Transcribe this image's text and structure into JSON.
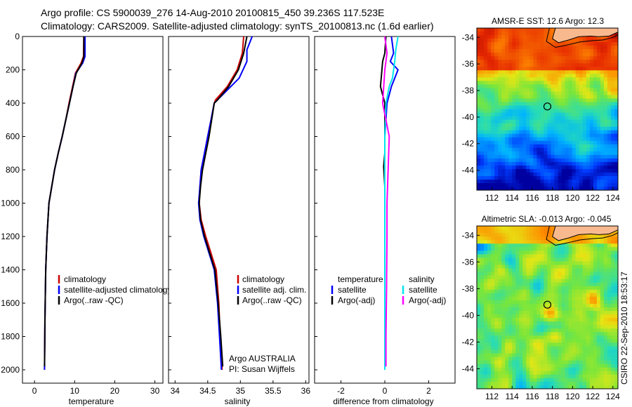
{
  "header": {
    "line1": "Argo profile: CS 5900039_276 14-Aug-2010 20100815_450 39.236S 117.523E",
    "line2": "Climatology: CARS2009. Satellite-adjusted climatology: synTS_20100813.nc (1.6d earlier)"
  },
  "colors": {
    "climatology": "#cc0000",
    "satellite": "#0000ff",
    "argo": "#000000",
    "sat_sal": "#00e5ee",
    "argo_sal": "#ff00ff",
    "land": "#f9b98f"
  },
  "chart_data": [
    {
      "type": "line",
      "xlabel": "temperature",
      "xticks": [
        0,
        10,
        20,
        30
      ],
      "xlim": [
        -3,
        32
      ],
      "ylim": [
        0,
        2080
      ],
      "yticks": [
        0,
        200,
        400,
        600,
        800,
        1000,
        1200,
        1400,
        1600,
        1800,
        2000
      ],
      "y_reversed": true,
      "series": [
        {
          "name": "climatology",
          "color": "#cc0000",
          "x": [
            12.3,
            12.2,
            11.6,
            10.2,
            9.5,
            8.6,
            7.8,
            6.9,
            5.9,
            5.0,
            4.3,
            3.6,
            3.1,
            2.8,
            2.6,
            2.5
          ],
          "y": [
            0,
            120,
            160,
            220,
            300,
            400,
            500,
            600,
            700,
            800,
            900,
            1000,
            1200,
            1400,
            1700,
            2000
          ]
        },
        {
          "name": "satellite-adjusted climatology",
          "color": "#0000ff",
          "x": [
            12.6,
            12.6,
            12.0,
            10.3,
            9.6,
            8.7,
            7.8,
            6.9,
            5.9,
            5.0,
            4.3,
            3.6,
            3.1,
            2.8,
            2.6,
            2.5
          ],
          "y": [
            0,
            120,
            160,
            220,
            300,
            400,
            500,
            600,
            700,
            800,
            900,
            1000,
            1200,
            1400,
            1700,
            2000
          ]
        },
        {
          "name": "Argo(..raw -QC)",
          "color": "#000000",
          "x": [
            12.3,
            12.3,
            11.8,
            10.4,
            9.6,
            8.7,
            7.8,
            6.9,
            5.9,
            5.0,
            4.3,
            3.6,
            3.1,
            2.8,
            2.6,
            2.5
          ],
          "y": [
            0,
            120,
            160,
            220,
            300,
            400,
            500,
            600,
            700,
            800,
            900,
            1000,
            1200,
            1400,
            1700,
            1980
          ]
        }
      ],
      "legend": [
        "climatology",
        "satellite-adjusted climatology",
        "Argo(..raw -QC)"
      ]
    },
    {
      "type": "line",
      "xlabel": "salinity",
      "xticks": [
        34,
        34.5,
        35,
        35.5,
        36
      ],
      "xlim": [
        33.9,
        36.05
      ],
      "ylim": [
        0,
        2080
      ],
      "y_reversed": true,
      "series": [
        {
          "name": "climatology",
          "color": "#cc0000",
          "x": [
            35.05,
            35.03,
            34.95,
            34.8,
            34.62,
            34.6,
            34.55,
            34.5,
            34.45,
            34.4,
            34.38,
            34.37,
            34.4,
            34.47,
            34.55,
            34.63,
            34.67,
            34.69,
            34.72
          ],
          "y": [
            0,
            100,
            200,
            300,
            380,
            400,
            500,
            600,
            700,
            800,
            900,
            1000,
            1100,
            1200,
            1300,
            1400,
            1600,
            1800,
            2000
          ]
        },
        {
          "name": "satellite adj. clim.",
          "color": "#0000ff",
          "x": [
            35.18,
            35.1,
            35.1,
            34.98,
            34.65,
            34.6,
            34.55,
            34.5,
            34.45,
            34.4,
            34.38,
            34.36,
            34.38,
            34.44,
            34.52,
            34.6,
            34.65,
            34.68,
            34.71
          ],
          "y": [
            0,
            80,
            150,
            250,
            380,
            400,
            500,
            600,
            700,
            800,
            900,
            1000,
            1100,
            1200,
            1300,
            1400,
            1600,
            1800,
            2000
          ]
        },
        {
          "name": "Argo(..raw -QC)",
          "color": "#000000",
          "x": [
            35.1,
            35.05,
            34.97,
            34.82,
            34.65,
            34.6,
            34.56,
            34.52,
            34.47,
            34.42,
            34.39,
            34.37,
            34.39,
            34.45,
            34.53,
            34.61,
            34.66,
            34.7,
            34.73
          ],
          "y": [
            0,
            100,
            200,
            300,
            380,
            400,
            500,
            600,
            700,
            800,
            900,
            1000,
            1100,
            1200,
            1300,
            1400,
            1600,
            1800,
            1980
          ]
        }
      ],
      "legend": [
        "climatology",
        "satellite adj. clim.",
        "Argo(..raw -QC)"
      ],
      "annotations": [
        "Argo AUSTRALIA",
        "PI: Susan Wijffels"
      ]
    },
    {
      "type": "line",
      "xlabel": "difference from climatology",
      "xticks": [
        -2,
        0,
        2
      ],
      "xlim": [
        -3.2,
        3.2
      ],
      "ylim": [
        0,
        2080
      ],
      "y_reversed": true,
      "series": [
        {
          "name": "temperature satellite",
          "color": "#0000ff",
          "x": [
            0.3,
            0.4,
            0.25,
            0.6,
            0.3,
            0.1,
            0.0,
            0.0,
            0.0,
            0.0,
            0.0,
            0.0
          ],
          "y": [
            0,
            100,
            150,
            200,
            300,
            400,
            600,
            800,
            1000,
            1400,
            1800,
            2000
          ]
        },
        {
          "name": "temperature Argo(-adj)",
          "color": "#000000",
          "x": [
            0.05,
            0.0,
            -0.1,
            -0.2,
            0.0,
            0.0,
            0.0,
            -0.05,
            0.0,
            0.0,
            0.0,
            0.0
          ],
          "y": [
            0,
            100,
            150,
            300,
            400,
            600,
            700,
            780,
            900,
            1400,
            1800,
            1980
          ]
        },
        {
          "name": "salinity satellite",
          "color": "#00e5ee",
          "x": [
            0.6,
            0.5,
            0.45,
            0.35,
            0.2,
            0.05,
            0.0,
            0.0,
            0.0,
            0.0,
            0.0,
            0.0
          ],
          "y": [
            0,
            80,
            150,
            250,
            300,
            400,
            600,
            800,
            1000,
            1400,
            1800,
            2000
          ]
        },
        {
          "name": "salinity Argo(-adj)",
          "color": "#ff00ff",
          "x": [
            0.0,
            0.1,
            0.0,
            -0.1,
            0.05,
            0.2,
            0.15,
            0.1,
            0.1,
            0.08,
            0.05,
            0.05
          ],
          "y": [
            0,
            100,
            200,
            400,
            500,
            600,
            800,
            1000,
            1200,
            1500,
            1800,
            1980
          ]
        }
      ],
      "legend_left": {
        "title": "temperature",
        "items": [
          "satellite",
          "Argo(-adj)"
        ]
      },
      "legend_right": {
        "title": "salinity",
        "items": [
          "satellite",
          "Argo(-adj)"
        ]
      }
    },
    {
      "type": "heatmap",
      "title": "AMSR-E SST: 12.6 Argo: 12.3",
      "xticks": [
        112,
        114,
        116,
        118,
        120,
        122,
        124
      ],
      "xlim": [
        110.5,
        124.5
      ],
      "yticks": [
        -34,
        -36,
        -38,
        -40,
        -42,
        -44
      ],
      "ylim": [
        -45.5,
        -33.3
      ],
      "marker": {
        "lon": 117.5,
        "lat": -39.2
      }
    },
    {
      "type": "heatmap",
      "title": "Altimetric SLA: -0.013 Argo: -0.045",
      "xticks": [
        112,
        114,
        116,
        118,
        120,
        122,
        124
      ],
      "xlim": [
        110.5,
        124.5
      ],
      "yticks": [
        -34,
        -36,
        -38,
        -40,
        -42,
        -44
      ],
      "ylim": [
        -45.5,
        -33.3
      ],
      "marker": {
        "lon": 117.5,
        "lat": -39.2
      }
    }
  ],
  "credit": "CSIRO 22-Sep-2010 18:53:17"
}
